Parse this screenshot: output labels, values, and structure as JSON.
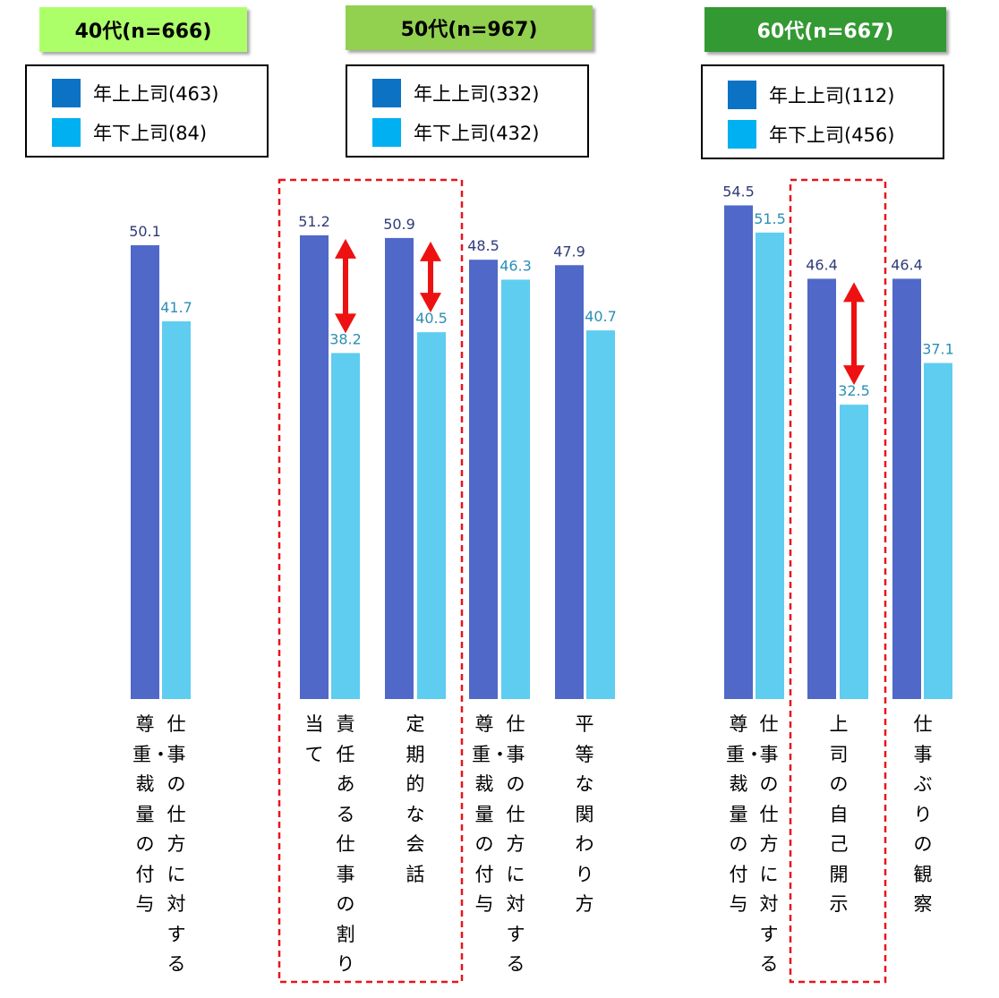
{
  "colors": {
    "older_boss": "#5068c8",
    "younger_boss": "#5ecdf0",
    "older_label": "#2f3c78",
    "younger_label": "#2a8fb5",
    "legend_older": "#0b72c4",
    "legend_younger": "#00b0f0",
    "highlight": "#e8141c",
    "arrow": "#ee1111"
  },
  "groups": [
    {
      "badge": "40代(n=666)",
      "badge_color": "#adff6a",
      "legend": [
        {
          "label": "年上上司(463)"
        },
        {
          "label": "年下上司(84)"
        }
      ]
    },
    {
      "badge": "50代(n=967)",
      "badge_color": "#92d050",
      "legend": [
        {
          "label": "年上上司(332)"
        },
        {
          "label": "年下上司(432)"
        }
      ]
    },
    {
      "badge": "60代(n=667)",
      "badge_color": "#339933",
      "legend": [
        {
          "label": "年上上司(112)"
        },
        {
          "label": "年下上司(456)"
        }
      ]
    }
  ],
  "chart_data": {
    "type": "bar",
    "ylim": [
      0,
      60
    ],
    "series": [
      {
        "name": "年上上司"
      },
      {
        "name": "年下上司"
      }
    ],
    "panels": [
      {
        "group": "40代(n=666)",
        "categories": [
          {
            "label": "尊重・裁量の付与",
            "older": 50.1,
            "younger": null
          },
          {
            "label": "仕事の仕方に対する",
            "older": null,
            "younger": 41.7
          }
        ]
      },
      {
        "group": "50代(n=967)",
        "categories": [
          {
            "label": "責任ある仕事の割り当て",
            "older": 51.2,
            "younger": 38.2,
            "highlight": true,
            "arrow": true
          },
          {
            "label": "定期的な会話",
            "older": 50.9,
            "younger": 40.5,
            "highlight": true,
            "arrow": true
          },
          {
            "label": "尊重・裁量の付与",
            "older": 48.5,
            "younger": null
          },
          {
            "label": "仕事の仕方に対する",
            "older": null,
            "younger": 46.3
          },
          {
            "label": "平等な関わり方",
            "older": 47.9,
            "younger": 40.7
          }
        ]
      },
      {
        "group": "60代(n=667)",
        "categories": [
          {
            "label": "尊重・裁量の付与",
            "older": 54.5,
            "younger": null
          },
          {
            "label": "仕事の仕方に対する",
            "older": null,
            "younger": 51.5
          },
          {
            "label": "上司の自己開示",
            "older": 46.4,
            "younger": 32.5,
            "highlight": true,
            "arrow": true
          },
          {
            "label": "仕事ぶりの観察",
            "older": 46.4,
            "younger": 37.1
          }
        ]
      }
    ],
    "bars": [
      {
        "series": "older",
        "value": 50.1
      },
      {
        "series": "younger",
        "value": 41.7
      },
      {
        "series": "older",
        "value": 51.2
      },
      {
        "series": "younger",
        "value": 38.2
      },
      {
        "series": "older",
        "value": 50.9
      },
      {
        "series": "younger",
        "value": 40.5
      },
      {
        "series": "older",
        "value": 48.5
      },
      {
        "series": "younger",
        "value": 46.3
      },
      {
        "series": "older",
        "value": 47.9
      },
      {
        "series": "younger",
        "value": 40.7
      },
      {
        "series": "older",
        "value": 54.5
      },
      {
        "series": "younger",
        "value": 51.5
      },
      {
        "series": "older",
        "value": 46.4
      },
      {
        "series": "younger",
        "value": 32.5
      },
      {
        "series": "older",
        "value": 46.4
      },
      {
        "series": "younger",
        "value": 37.1
      }
    ],
    "value_labels": [
      "50.1",
      "41.7",
      "51.2",
      "38.2",
      "50.9",
      "40.5",
      "48.5",
      "46.3",
      "47.9",
      "40.7",
      "54.5",
      "51.5",
      "46.4",
      "32.5",
      "46.4",
      "37.1"
    ],
    "axis_labels": [
      "尊重・裁量の付与",
      "仕事の仕方に対する",
      "当て",
      "責任ある仕事の割り",
      "定期的な会話",
      "尊重・裁量の付与",
      "仕事の仕方に対する",
      "平等な関わり方",
      "尊重・裁量の付与",
      "仕事の仕方に対する",
      "上司の自己開示",
      "仕事ぶりの観察"
    ]
  }
}
